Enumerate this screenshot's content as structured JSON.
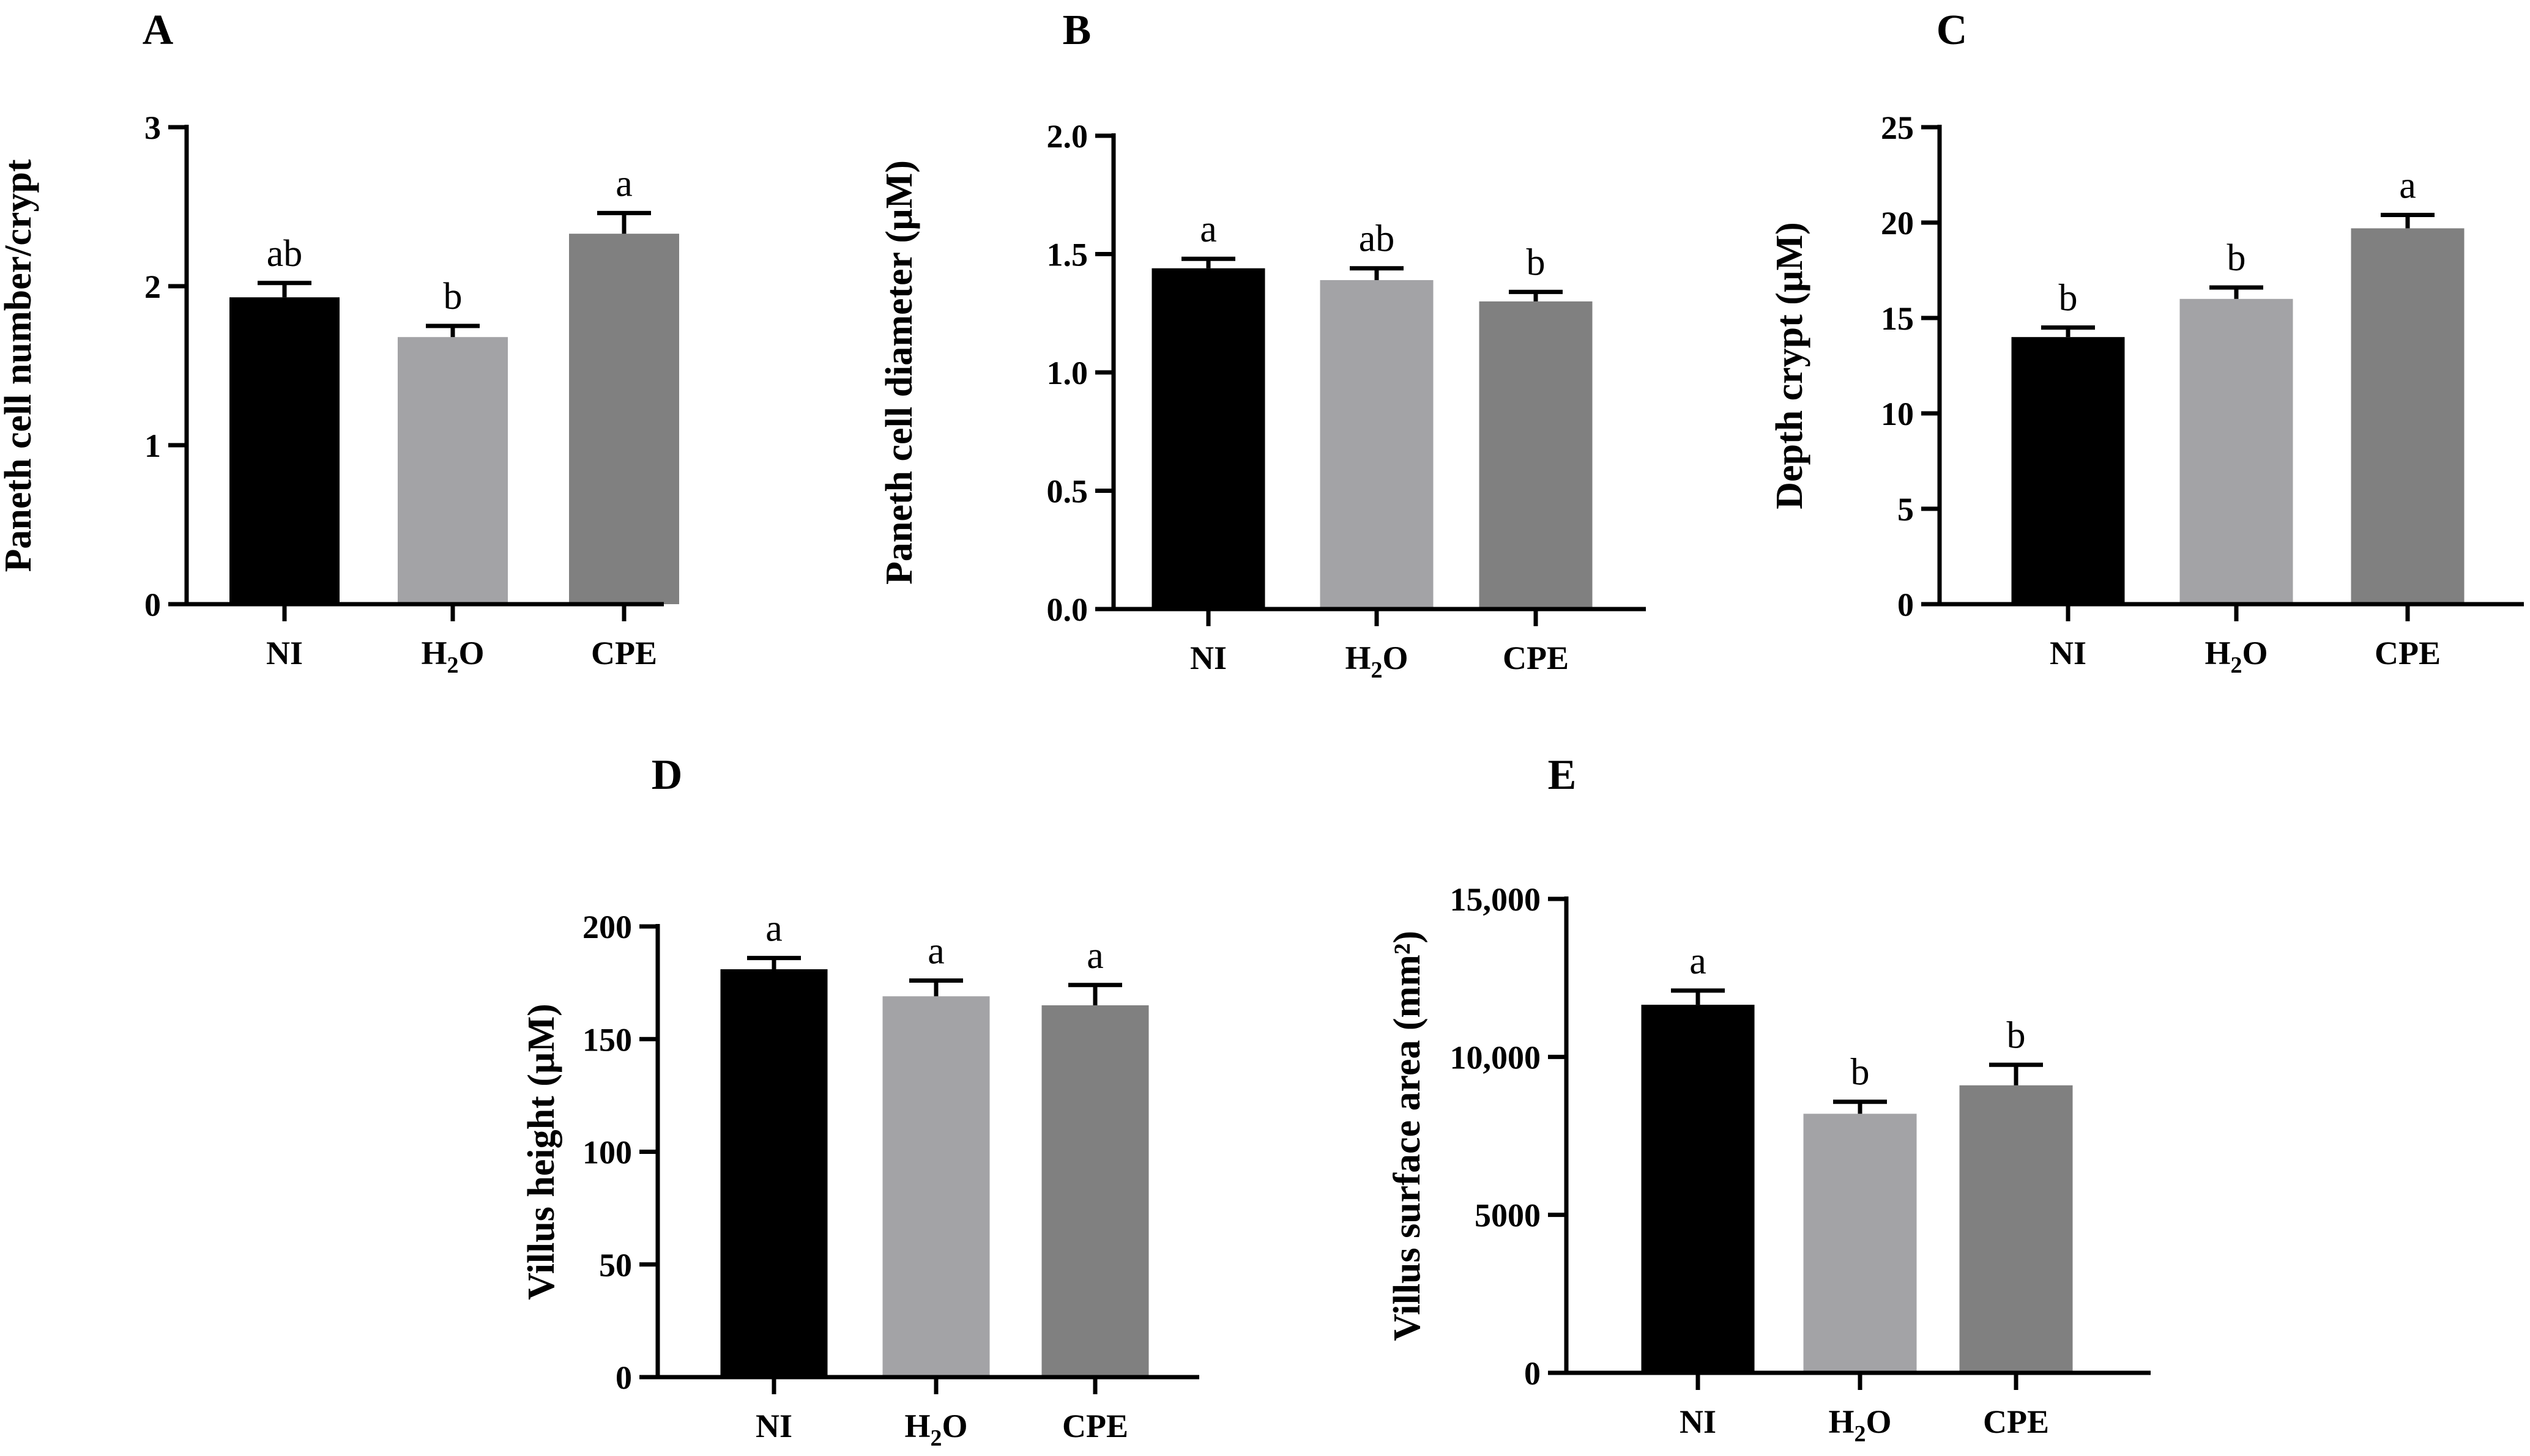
{
  "colors": {
    "NI": "#000000",
    "H2O": "#a3a3a6",
    "CPE": "#808080"
  },
  "chart_data": [
    {
      "panel": "A",
      "type": "bar",
      "categories": [
        "NI",
        "H2O",
        "CPE"
      ],
      "category_labels": [
        {
          "text": "NI"
        },
        {
          "text": "H",
          "sub": "2",
          "tail": "O"
        },
        {
          "text": "CPE"
        }
      ],
      "values": [
        1.93,
        1.68,
        2.33
      ],
      "errors": [
        0.09,
        0.07,
        0.13
      ],
      "significance": [
        "ab",
        "b",
        "a"
      ],
      "ylabel": "Paneth cell number/crypt",
      "xlabel": "",
      "ylim": [
        0,
        3
      ],
      "yticks": [
        0,
        1,
        2,
        3
      ],
      "ytick_labels": [
        "0",
        "1",
        "2",
        "3"
      ]
    },
    {
      "panel": "B",
      "type": "bar",
      "categories": [
        "NI",
        "H2O",
        "CPE"
      ],
      "category_labels": [
        {
          "text": "NI"
        },
        {
          "text": "H",
          "sub": "2",
          "tail": "O"
        },
        {
          "text": "CPE"
        }
      ],
      "values": [
        1.44,
        1.39,
        1.3
      ],
      "errors": [
        0.04,
        0.05,
        0.04
      ],
      "significance": [
        "a",
        "ab",
        "b"
      ],
      "ylabel": "Paneth cell diameter (µM)",
      "xlabel": "",
      "ylim": [
        0,
        2
      ],
      "yticks": [
        0,
        0.5,
        1,
        1.5,
        2
      ],
      "ytick_labels": [
        "0.0",
        "0.5",
        "1.0",
        "1.5",
        "2.0"
      ]
    },
    {
      "panel": "C",
      "type": "bar",
      "categories": [
        "NI",
        "H2O",
        "CPE"
      ],
      "category_labels": [
        {
          "text": "NI"
        },
        {
          "text": "H",
          "sub": "2",
          "tail": "O"
        },
        {
          "text": "CPE"
        }
      ],
      "values": [
        14.0,
        16.0,
        19.7
      ],
      "errors": [
        0.5,
        0.6,
        0.7
      ],
      "significance": [
        "b",
        "b",
        "a"
      ],
      "ylabel": "Depth crypt (µM)",
      "xlabel": "",
      "ylim": [
        0,
        25
      ],
      "yticks": [
        0,
        5,
        10,
        15,
        20,
        25
      ],
      "ytick_labels": [
        "0",
        "5",
        "10",
        "15",
        "20",
        "25"
      ]
    },
    {
      "panel": "D",
      "type": "bar",
      "categories": [
        "NI",
        "H2O",
        "CPE"
      ],
      "category_labels": [
        {
          "text": "NI"
        },
        {
          "text": "H",
          "sub": "2",
          "tail": "O"
        },
        {
          "text": "CPE"
        }
      ],
      "values": [
        181,
        169,
        165
      ],
      "errors": [
        5,
        7,
        9
      ],
      "significance": [
        "a",
        "a",
        "a"
      ],
      "ylabel": "Villus height (µM)",
      "xlabel": "",
      "ylim": [
        0,
        200
      ],
      "yticks": [
        0,
        50,
        100,
        150,
        200
      ],
      "ytick_labels": [
        "0",
        "50",
        "100",
        "150",
        "200"
      ]
    },
    {
      "panel": "E",
      "type": "bar",
      "categories": [
        "NI",
        "H2O",
        "CPE"
      ],
      "category_labels": [
        {
          "text": "NI"
        },
        {
          "text": "H",
          "sub": "2",
          "tail": "O"
        },
        {
          "text": "CPE"
        }
      ],
      "values": [
        11650,
        8200,
        9100
      ],
      "errors": [
        450,
        380,
        650
      ],
      "significance": [
        "a",
        "b",
        "b"
      ],
      "ylabel": "Villus surface area (mm²)",
      "xlabel": "",
      "ylim": [
        0,
        15000
      ],
      "yticks": [
        0,
        5000,
        10000,
        15000
      ],
      "ytick_labels": [
        "0",
        "5000",
        "10,000",
        "15,000"
      ]
    }
  ]
}
